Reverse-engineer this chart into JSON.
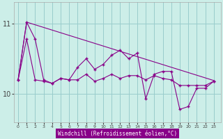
{
  "xlabel": "Windchill (Refroidissement éolien,°C)",
  "background_color": "#cceee8",
  "line_color": "#880088",
  "grid_color": "#99cccc",
  "x_ticks": [
    0,
    1,
    2,
    3,
    4,
    5,
    6,
    7,
    8,
    9,
    10,
    11,
    12,
    13,
    14,
    15,
    16,
    17,
    18,
    19,
    20,
    21,
    22,
    23
  ],
  "y_ticks": [
    10,
    11
  ],
  "ylim": [
    9.6,
    11.3
  ],
  "xlim": [
    -0.5,
    23.8
  ],
  "line1_x": [
    0,
    1,
    23
  ],
  "line1_y": [
    10.2,
    11.02,
    10.19
  ],
  "line2_x": [
    0,
    1,
    2,
    3,
    4,
    5,
    6,
    7,
    8,
    9,
    10,
    11,
    12,
    13,
    14,
    15,
    16,
    17,
    18,
    19,
    20,
    21,
    22,
    23
  ],
  "line2_y": [
    10.2,
    10.78,
    10.2,
    10.18,
    10.15,
    10.22,
    10.2,
    10.2,
    10.28,
    10.18,
    10.22,
    10.28,
    10.22,
    10.26,
    10.26,
    10.2,
    10.26,
    10.22,
    10.2,
    10.12,
    10.12,
    10.12,
    10.12,
    10.18
  ],
  "line3_x": [
    0,
    1,
    2,
    3,
    4,
    5,
    6,
    7,
    8,
    9,
    10,
    11,
    12,
    13,
    14,
    15,
    16,
    17,
    18,
    19,
    20,
    21,
    22,
    23
  ],
  "line3_y": [
    10.2,
    11.02,
    10.78,
    10.2,
    10.15,
    10.22,
    10.2,
    10.38,
    10.5,
    10.35,
    10.42,
    10.55,
    10.62,
    10.5,
    10.58,
    9.93,
    10.28,
    10.32,
    10.32,
    9.78,
    9.82,
    10.08,
    10.08,
    10.18
  ]
}
